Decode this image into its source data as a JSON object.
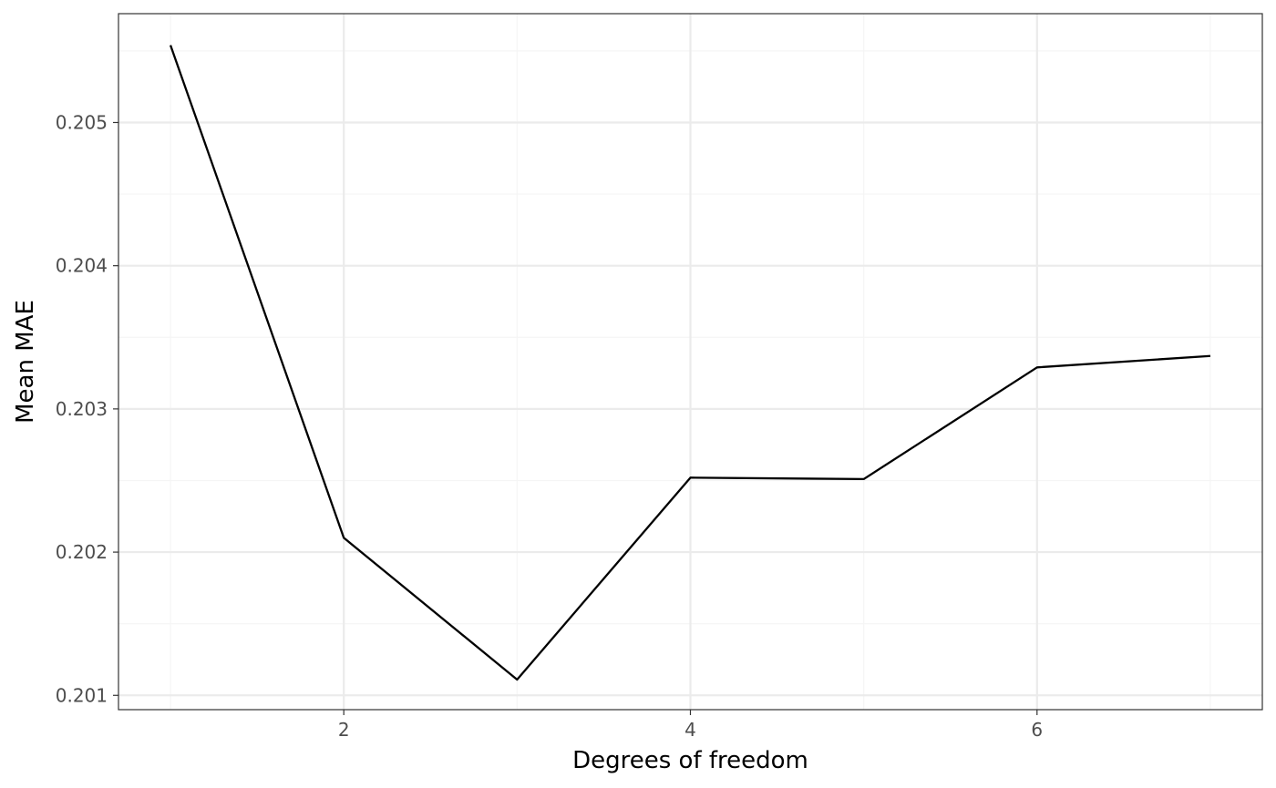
{
  "chart_data": {
    "type": "line",
    "title": "",
    "xlabel": "Degrees of freedom",
    "ylabel": "Mean MAE",
    "x": [
      1,
      2,
      3,
      4,
      5,
      6,
      7
    ],
    "series": [
      {
        "values": [
          0.20554,
          0.2021,
          0.20111,
          0.20252,
          0.20251,
          0.20329,
          0.20337
        ]
      }
    ],
    "xlim": [
      0.7,
      7.3
    ],
    "ylim": [
      0.2009,
      0.20576
    ],
    "xticks": [
      2,
      4,
      6
    ],
    "xticks_minor": [
      1,
      3,
      5,
      7
    ],
    "xtick_labels": [
      "2",
      "4",
      "6"
    ],
    "yticks": [
      0.201,
      0.202,
      0.203,
      0.204,
      0.205
    ],
    "yticks_minor": [
      0.2015,
      0.2025,
      0.2035,
      0.2045,
      0.2055
    ],
    "ytick_labels": [
      "0.201",
      "0.202",
      "0.203",
      "0.204",
      "0.205"
    ],
    "grid": true,
    "legend": "none"
  },
  "colors": {
    "line": "#000000",
    "grid_major": "#ebebeb",
    "grid_minor": "#f5f5f5",
    "panel_border": "#333333",
    "tick_text": "#4d4d4d",
    "tick_mark": "#333333"
  }
}
